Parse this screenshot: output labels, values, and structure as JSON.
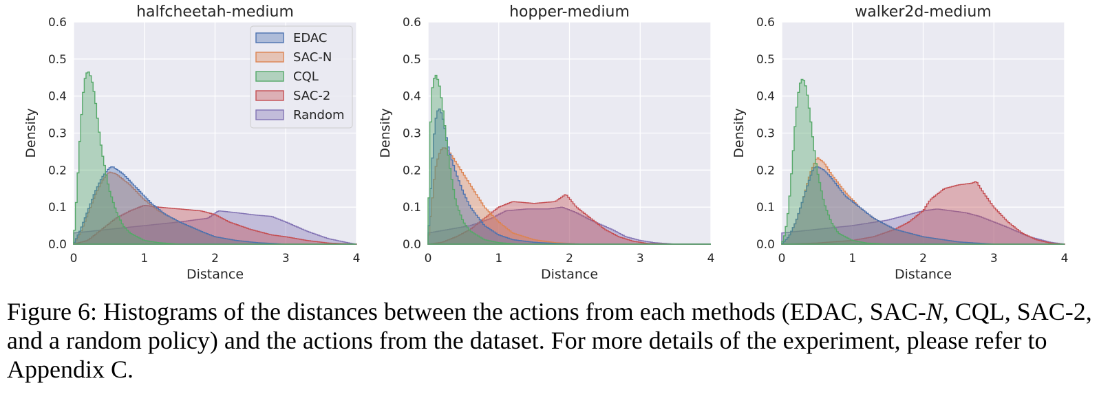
{
  "figure": {
    "caption_label": "Figure 6:",
    "caption_part1": "Histograms of the distances between the actions from each methods (EDAC, SAC-",
    "caption_italic": "N",
    "caption_part2": ", CQL, SAC-2, and a random policy) and the actions from the dataset. For more details of the experiment, please refer to Appendix C."
  },
  "colors": {
    "EDAC": "#4c72b0",
    "SAC-N": "#dd8452",
    "CQL": "#55a868",
    "SAC-2": "#c44e52",
    "Random": "#8172b3",
    "panel_bg": "#eaeaf2",
    "grid": "#ffffff"
  },
  "chart_data": [
    {
      "type": "area",
      "title": "halfcheetah-medium",
      "xlabel": "Distance",
      "ylabel": "Density",
      "xlim": [
        0,
        4
      ],
      "ylim": [
        0,
        0.6
      ],
      "xticks": [
        "0",
        "1",
        "2",
        "3",
        "4"
      ],
      "yticks": [
        "0.0",
        "0.1",
        "0.2",
        "0.3",
        "0.4",
        "0.5",
        "0.6"
      ],
      "grid": true,
      "legend": "top-right",
      "series": [
        {
          "name": "Random",
          "x": [
            0.0,
            0.5,
            1.0,
            1.5,
            1.9,
            2.05,
            2.3,
            2.6,
            2.8,
            3.0,
            3.3,
            3.6,
            3.9,
            4.0
          ],
          "values": [
            0.03,
            0.04,
            0.05,
            0.06,
            0.07,
            0.09,
            0.085,
            0.078,
            0.075,
            0.06,
            0.035,
            0.015,
            0.003,
            0.0
          ]
        },
        {
          "name": "SAC-2",
          "x": [
            0.0,
            0.2,
            0.4,
            0.6,
            0.8,
            1.0,
            1.2,
            1.5,
            1.8,
            2.0,
            2.2,
            2.5,
            2.8,
            3.0,
            3.3,
            3.6,
            4.0
          ],
          "values": [
            0.0,
            0.01,
            0.04,
            0.07,
            0.09,
            0.105,
            0.1,
            0.095,
            0.09,
            0.08,
            0.06,
            0.04,
            0.025,
            0.02,
            0.01,
            0.003,
            0.0
          ]
        },
        {
          "name": "SAC-N",
          "x": [
            0.0,
            0.1,
            0.2,
            0.3,
            0.4,
            0.5,
            0.6,
            0.8,
            1.0,
            1.2,
            1.5,
            1.8,
            2.0,
            2.3,
            2.6,
            3.0
          ],
          "values": [
            0.0,
            0.03,
            0.08,
            0.13,
            0.17,
            0.195,
            0.19,
            0.16,
            0.12,
            0.09,
            0.06,
            0.035,
            0.02,
            0.01,
            0.004,
            0.0
          ]
        },
        {
          "name": "EDAC",
          "x": [
            0.0,
            0.1,
            0.2,
            0.3,
            0.4,
            0.5,
            0.55,
            0.7,
            0.9,
            1.1,
            1.3,
            1.5,
            1.8,
            2.0,
            2.3,
            2.6,
            3.0
          ],
          "values": [
            0.0,
            0.04,
            0.09,
            0.14,
            0.18,
            0.205,
            0.21,
            0.19,
            0.15,
            0.11,
            0.08,
            0.06,
            0.035,
            0.02,
            0.01,
            0.004,
            0.0
          ]
        },
        {
          "name": "CQL",
          "x": [
            0.0,
            0.05,
            0.1,
            0.15,
            0.2,
            0.25,
            0.3,
            0.35,
            0.4,
            0.5,
            0.6,
            0.7,
            0.8,
            1.0,
            1.2,
            1.5
          ],
          "values": [
            0.0,
            0.15,
            0.32,
            0.44,
            0.47,
            0.45,
            0.4,
            0.32,
            0.25,
            0.15,
            0.09,
            0.05,
            0.03,
            0.01,
            0.004,
            0.0
          ]
        }
      ]
    },
    {
      "type": "area",
      "title": "hopper-medium",
      "xlabel": "Distance",
      "ylabel": "Density",
      "xlim": [
        0,
        4
      ],
      "ylim": [
        0,
        0.6
      ],
      "xticks": [
        "0",
        "1",
        "2",
        "3",
        "4"
      ],
      "yticks": [
        "0.0",
        "0.1",
        "0.2",
        "0.3",
        "0.4",
        "0.5",
        "0.6"
      ],
      "grid": true,
      "series": [
        {
          "name": "Random",
          "x": [
            0.0,
            0.3,
            0.6,
            0.9,
            1.1,
            1.4,
            1.7,
            1.9,
            2.1,
            2.3,
            2.6,
            2.8,
            3.0,
            3.2,
            3.5,
            4.0
          ],
          "values": [
            0.03,
            0.04,
            0.05,
            0.07,
            0.09,
            0.095,
            0.095,
            0.1,
            0.085,
            0.065,
            0.04,
            0.02,
            0.01,
            0.004,
            0.0,
            0.0
          ]
        },
        {
          "name": "SAC-2",
          "x": [
            0.0,
            0.2,
            0.4,
            0.6,
            0.8,
            1.0,
            1.2,
            1.5,
            1.8,
            1.95,
            2.1,
            2.3,
            2.5,
            2.7,
            2.9,
            3.1,
            3.5
          ],
          "values": [
            0.0,
            0.005,
            0.02,
            0.04,
            0.07,
            0.1,
            0.115,
            0.11,
            0.115,
            0.135,
            0.1,
            0.07,
            0.04,
            0.02,
            0.008,
            0.002,
            0.0
          ]
        },
        {
          "name": "SAC-N",
          "x": [
            0.0,
            0.05,
            0.1,
            0.15,
            0.2,
            0.25,
            0.3,
            0.4,
            0.5,
            0.6,
            0.8,
            1.0,
            1.2,
            1.5,
            1.8,
            2.2
          ],
          "values": [
            0.0,
            0.1,
            0.2,
            0.24,
            0.26,
            0.26,
            0.25,
            0.22,
            0.19,
            0.16,
            0.1,
            0.06,
            0.03,
            0.012,
            0.004,
            0.0
          ]
        },
        {
          "name": "EDAC",
          "x": [
            0.0,
            0.05,
            0.1,
            0.15,
            0.2,
            0.25,
            0.3,
            0.4,
            0.5,
            0.6,
            0.8,
            1.0,
            1.2,
            1.5,
            1.8,
            2.2
          ],
          "values": [
            0.0,
            0.2,
            0.33,
            0.37,
            0.35,
            0.3,
            0.25,
            0.19,
            0.14,
            0.1,
            0.05,
            0.025,
            0.012,
            0.005,
            0.002,
            0.0
          ]
        },
        {
          "name": "CQL",
          "x": [
            0.0,
            0.03,
            0.06,
            0.1,
            0.13,
            0.16,
            0.2,
            0.25,
            0.3,
            0.35,
            0.4,
            0.5,
            0.6,
            0.8,
            1.0,
            1.3
          ],
          "values": [
            0.0,
            0.3,
            0.42,
            0.46,
            0.45,
            0.43,
            0.38,
            0.3,
            0.22,
            0.16,
            0.11,
            0.06,
            0.035,
            0.012,
            0.004,
            0.0
          ]
        }
      ]
    },
    {
      "type": "area",
      "title": "walker2d-medium",
      "xlabel": "Distance",
      "ylabel": "Density",
      "xlim": [
        0,
        4
      ],
      "ylim": [
        0,
        0.6
      ],
      "xticks": [
        "0",
        "1",
        "2",
        "3",
        "4"
      ],
      "yticks": [
        "0.0",
        "0.1",
        "0.2",
        "0.3",
        "0.4",
        "0.5",
        "0.6"
      ],
      "grid": true,
      "series": [
        {
          "name": "Random",
          "x": [
            0.0,
            0.5,
            1.0,
            1.5,
            1.8,
            2.0,
            2.2,
            2.4,
            2.6,
            2.8,
            3.0,
            3.2,
            3.5,
            3.8,
            4.0
          ],
          "values": [
            0.03,
            0.04,
            0.05,
            0.065,
            0.08,
            0.09,
            0.095,
            0.09,
            0.085,
            0.075,
            0.06,
            0.045,
            0.02,
            0.005,
            0.0
          ]
        },
        {
          "name": "SAC-2",
          "x": [
            0.0,
            0.5,
            1.0,
            1.3,
            1.6,
            1.8,
            2.0,
            2.1,
            2.3,
            2.5,
            2.7,
            2.75,
            2.85,
            3.0,
            3.2,
            3.4,
            3.6,
            3.8,
            4.0
          ],
          "values": [
            0.0,
            0.003,
            0.01,
            0.02,
            0.04,
            0.06,
            0.09,
            0.12,
            0.15,
            0.16,
            0.165,
            0.17,
            0.14,
            0.1,
            0.06,
            0.03,
            0.012,
            0.003,
            0.0
          ]
        },
        {
          "name": "SAC-N",
          "x": [
            0.0,
            0.1,
            0.2,
            0.3,
            0.4,
            0.5,
            0.6,
            0.7,
            0.9,
            1.1,
            1.3,
            1.6,
            2.0,
            2.5,
            3.0
          ],
          "values": [
            0.0,
            0.02,
            0.06,
            0.12,
            0.19,
            0.235,
            0.22,
            0.19,
            0.14,
            0.1,
            0.07,
            0.04,
            0.02,
            0.006,
            0.0
          ]
        },
        {
          "name": "EDAC",
          "x": [
            0.0,
            0.1,
            0.2,
            0.3,
            0.4,
            0.45,
            0.5,
            0.6,
            0.7,
            0.9,
            1.1,
            1.3,
            1.6,
            2.0,
            2.5,
            3.0
          ],
          "values": [
            0.0,
            0.02,
            0.06,
            0.12,
            0.18,
            0.205,
            0.21,
            0.2,
            0.18,
            0.13,
            0.1,
            0.07,
            0.04,
            0.02,
            0.006,
            0.0
          ]
        },
        {
          "name": "CQL",
          "x": [
            0.0,
            0.05,
            0.1,
            0.15,
            0.2,
            0.25,
            0.3,
            0.35,
            0.4,
            0.45,
            0.5,
            0.6,
            0.7,
            0.8,
            1.0,
            1.2,
            1.5
          ],
          "values": [
            0.0,
            0.03,
            0.1,
            0.22,
            0.35,
            0.43,
            0.45,
            0.42,
            0.35,
            0.27,
            0.2,
            0.11,
            0.06,
            0.03,
            0.01,
            0.003,
            0.0
          ]
        }
      ]
    }
  ]
}
